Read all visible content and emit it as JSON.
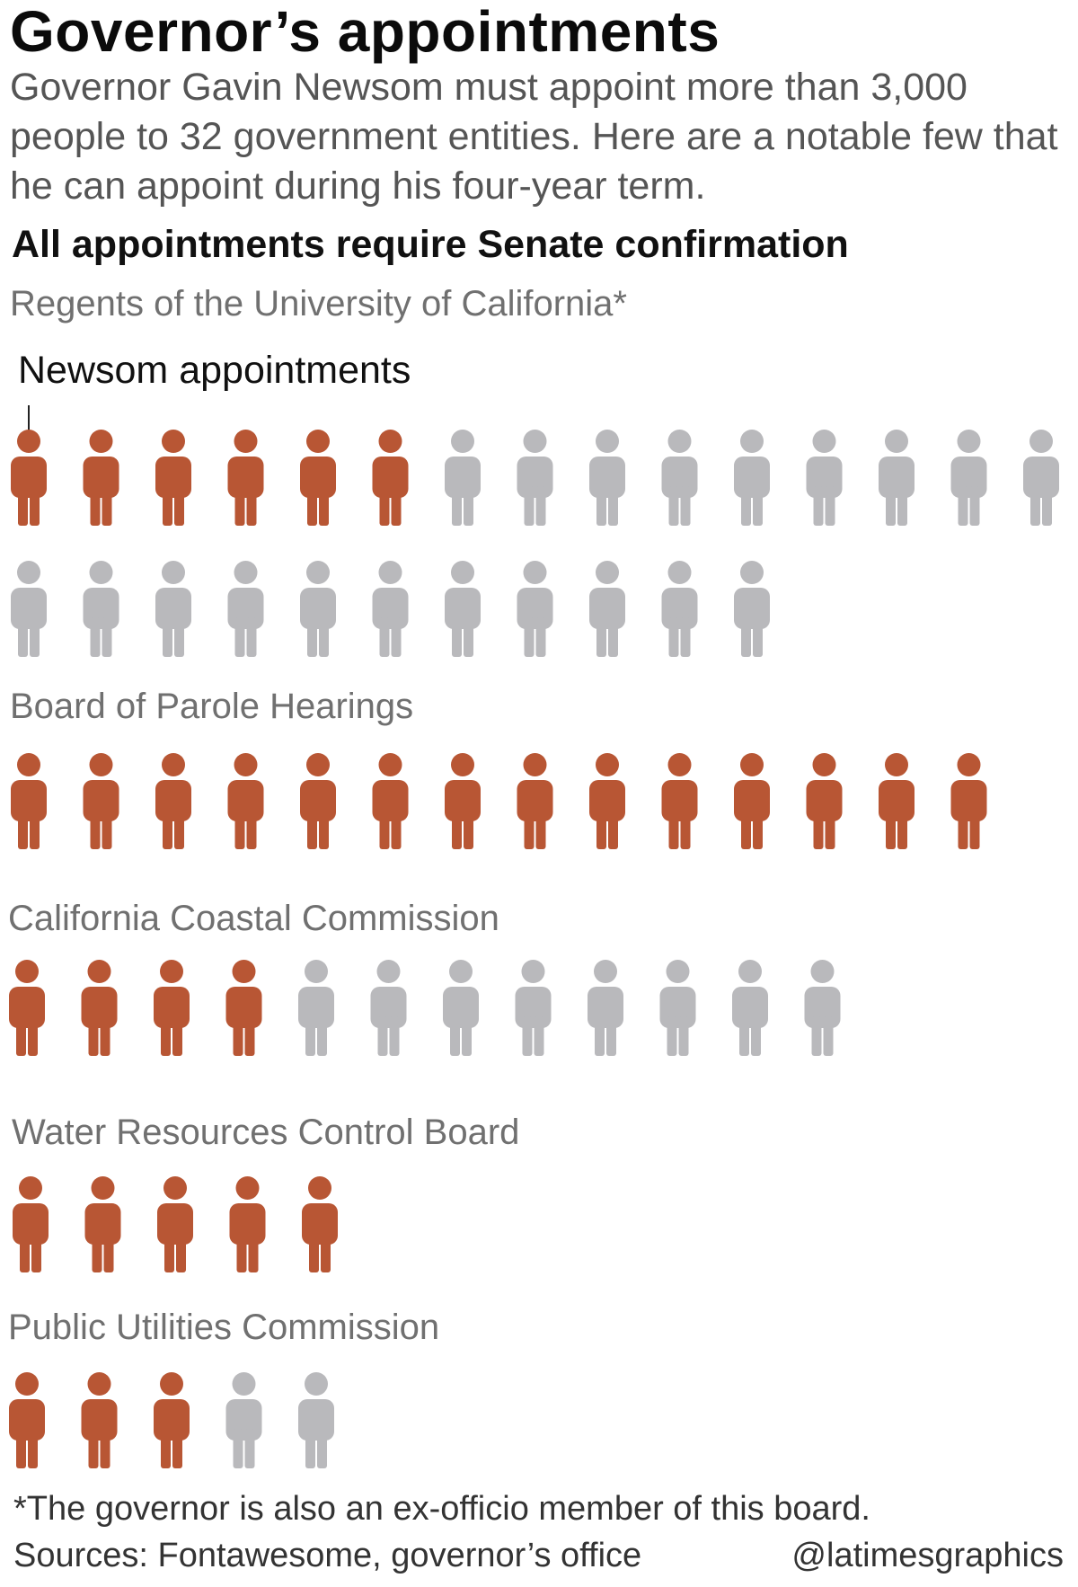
{
  "title": "Governor’s appointments",
  "subtitle": "Governor Gavin Newsom must  appoint more than 3,000 people to 32 government entities. Here are a notable few that he can appoint during his four-year term.",
  "heading": "All appointments require Senate confirmation",
  "annotation": "Newsom appointments",
  "footnote": "*The governor is also an ex-officio member of this board.",
  "sources": "Sources: Fontawesome, governor’s office",
  "credit": "@latimesgraphics",
  "colors": {
    "newsom": "#b85634",
    "other": "#b9b9bc"
  },
  "icon": "person-icon",
  "chart_data": {
    "type": "pictogram",
    "groups": [
      {
        "name": "Regents of the University of California*",
        "newsom": 6,
        "total": 26
      },
      {
        "name": "Board of Parole Hearings",
        "newsom": 14,
        "total": 14
      },
      {
        "name": "California Coastal Commission",
        "newsom": 4,
        "total": 12
      },
      {
        "name": "Water Resources Control Board",
        "newsom": 5,
        "total": 5
      },
      {
        "name": "Public Utilities Commission",
        "newsom": 3,
        "total": 5
      }
    ]
  }
}
